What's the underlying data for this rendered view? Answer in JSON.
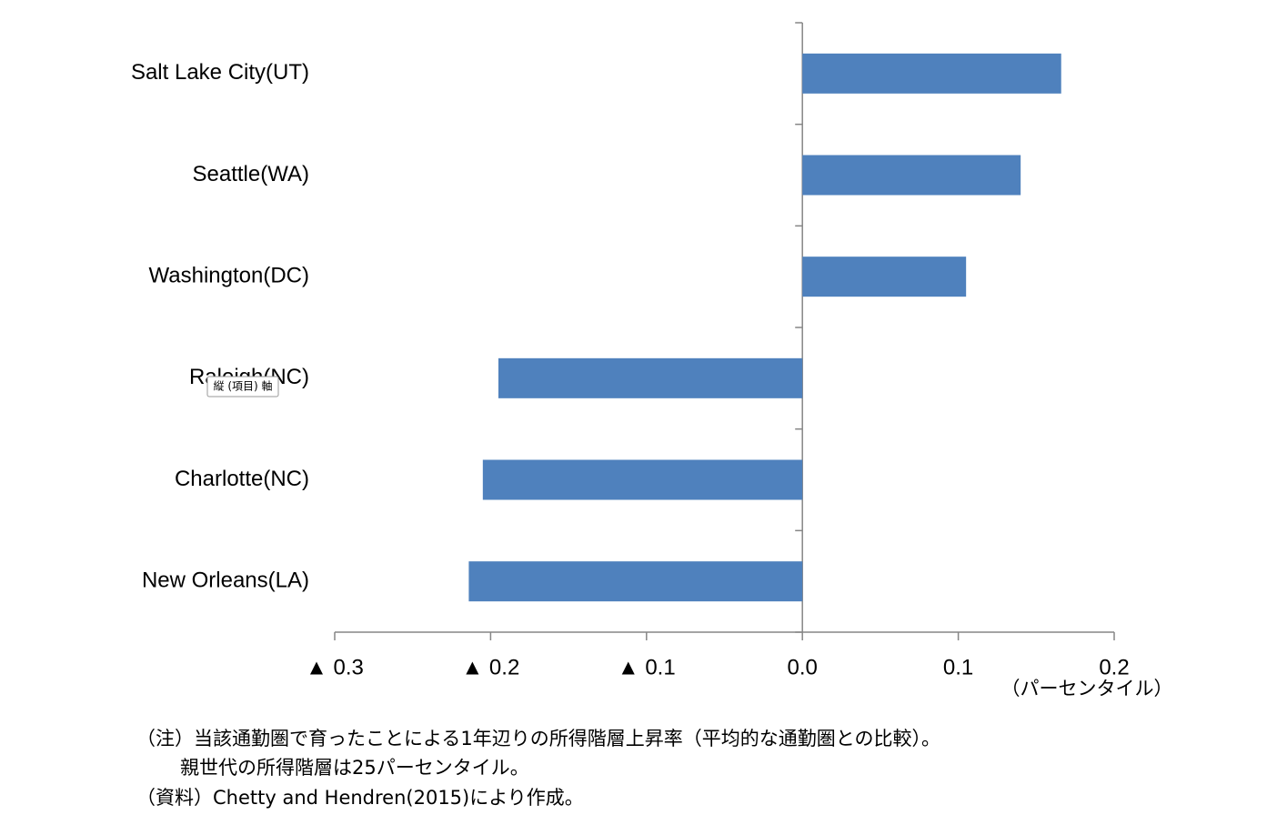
{
  "chart_data": {
    "type": "barh",
    "categories": [
      "Salt Lake City(UT)",
      "Seattle(WA)",
      "Washington(DC)",
      "Raleigh(NC)",
      "Charlotte(NC)",
      "New Orleans(LA)"
    ],
    "values": [
      0.166,
      0.14,
      0.105,
      -0.195,
      -0.205,
      -0.214
    ],
    "color": "#4f81bd",
    "xlim": [
      -0.3,
      0.2
    ],
    "xticks": [
      {
        "value": -0.3,
        "label": "▲ 0.3"
      },
      {
        "value": -0.2,
        "label": "▲ 0.2"
      },
      {
        "value": -0.1,
        "label": "▲ 0.1"
      },
      {
        "value": 0,
        "label": "0.0"
      },
      0.1,
      0.2
    ],
    "x_unit_label": "（パーセンタイル）",
    "tooltip": "縦 (項目) 軸",
    "notes": [
      "（注）当該通勤圏で育ったことによる1年辺りの所得階層上昇率（平均的な通勤圏との比較）。",
      "親世代の所得階層は25パーセンタイル。",
      "（資料）Chetty and Hendren(2015)により作成。"
    ]
  }
}
